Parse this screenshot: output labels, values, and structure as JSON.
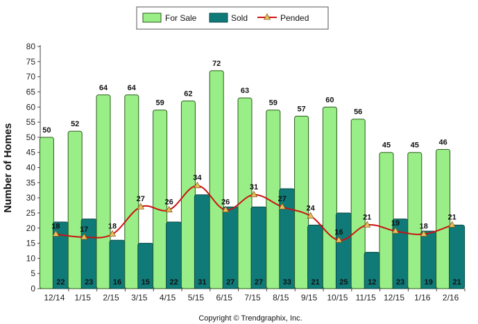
{
  "chart_data": {
    "type": "bar",
    "categories": [
      "12/14",
      "1/15",
      "2/15",
      "3/15",
      "4/15",
      "5/15",
      "6/15",
      "7/15",
      "8/15",
      "9/15",
      "10/15",
      "11/15",
      "12/15",
      "1/16",
      "2/16"
    ],
    "series": [
      {
        "name": "For Sale",
        "kind": "bar",
        "color": "#99ee88",
        "values": [
          50,
          52,
          64,
          64,
          59,
          62,
          72,
          63,
          59,
          57,
          60,
          56,
          45,
          45,
          46
        ]
      },
      {
        "name": "Sold",
        "kind": "bar",
        "color": "#0f7a78",
        "values": [
          22,
          23,
          16,
          15,
          22,
          31,
          27,
          27,
          33,
          21,
          25,
          12,
          23,
          19,
          21
        ]
      },
      {
        "name": "Pended",
        "kind": "line",
        "color": "#cc1111",
        "values": [
          18,
          17,
          18,
          27,
          26,
          34,
          26,
          31,
          27,
          24,
          16,
          21,
          19,
          18,
          21
        ]
      }
    ],
    "ylabel": "Number of Homes",
    "xlabel": "",
    "ylim": [
      0,
      80
    ],
    "ytick_step": 5,
    "legend_position": "top-center",
    "footer": "Copyright © Trendgraphix, Inc."
  }
}
